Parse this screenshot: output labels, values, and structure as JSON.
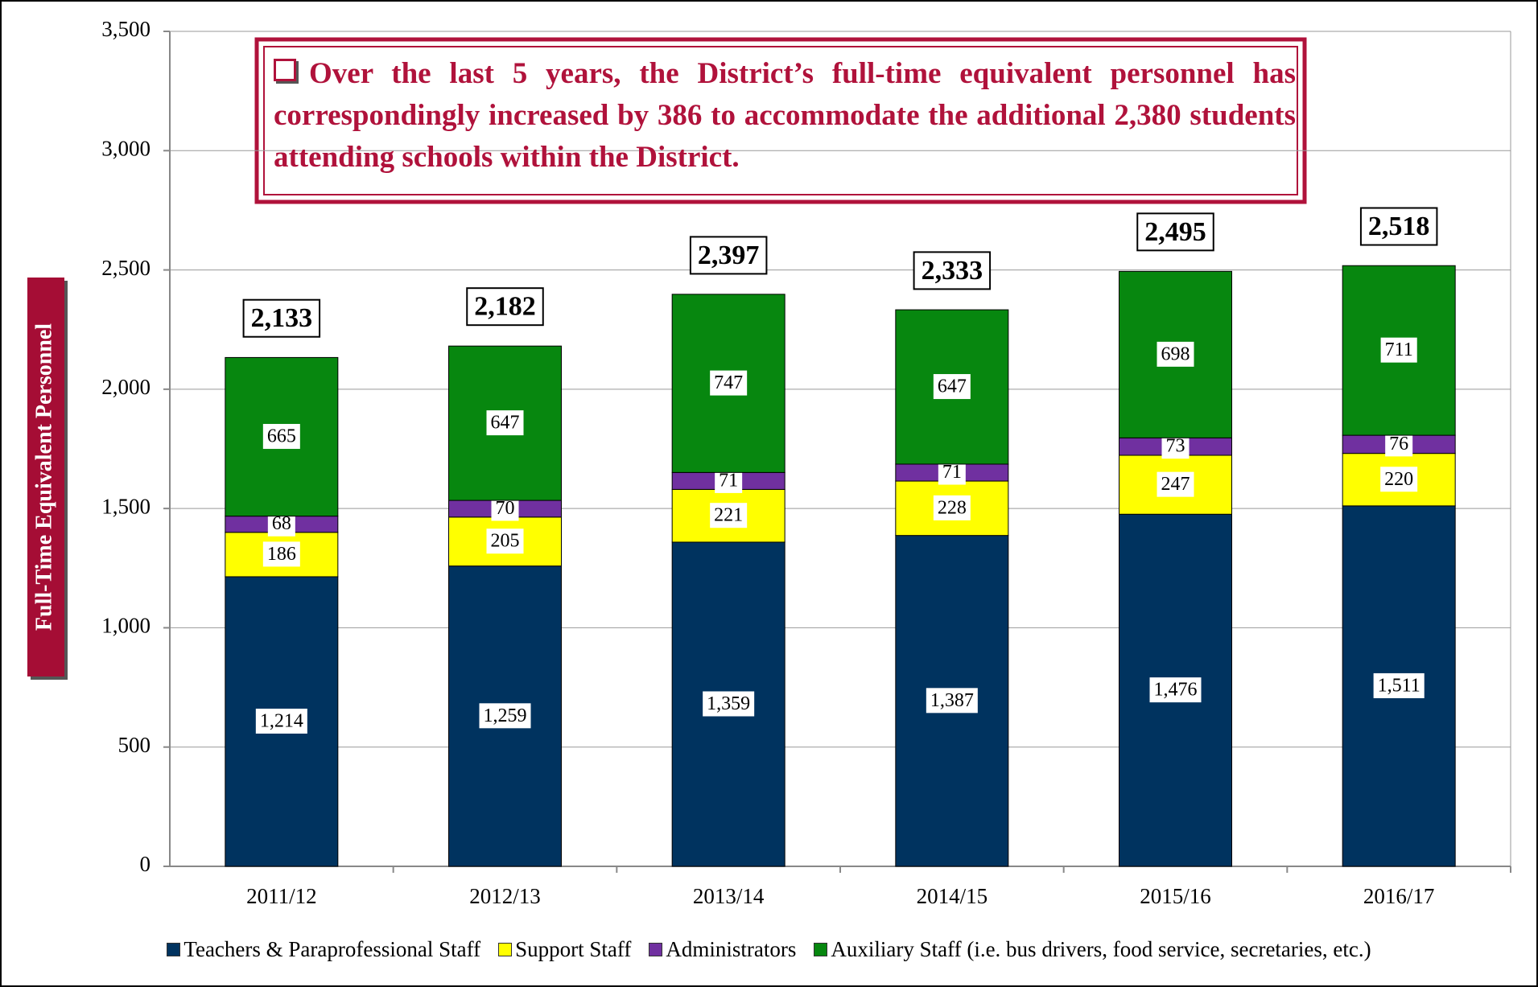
{
  "chart_data": {
    "type": "stacked_bar",
    "annotation": "Over the last 5 years, the District’s full-time equivalent personnel has correspondingly increased by 386 to accommodate the additional 2,380 students attending schools within the District.",
    "ylabel": "Full-Time Equivalent Personnel",
    "categories": [
      "2011/12",
      "2012/13",
      "2013/14",
      "2014/15",
      "2015/16",
      "2016/17"
    ],
    "series": [
      {
        "name": "Teachers & Paraprofessional Staff",
        "color": "#00335f",
        "values": [
          1214,
          1259,
          1359,
          1387,
          1476,
          1511
        ],
        "value_labels": [
          "1,214",
          "1,259",
          "1,359",
          "1,387",
          "1,476",
          "1,511"
        ]
      },
      {
        "name": "Support Staff",
        "color": "#ffff00",
        "values": [
          186,
          205,
          221,
          228,
          247,
          220
        ]
      },
      {
        "name": "Administrators",
        "color": "#7030a0",
        "values": [
          68,
          70,
          71,
          71,
          73,
          76
        ]
      },
      {
        "name": "Auxiliary Staff (i.e. bus drivers, food service, secretaries, etc.)",
        "color": "#07870f",
        "values": [
          665,
          647,
          747,
          647,
          698,
          711
        ]
      }
    ],
    "totals": [
      2133,
      2182,
      2397,
      2333,
      2495,
      2518
    ],
    "total_labels": [
      "2,133",
      "2,182",
      "2,397",
      "2,333",
      "2,495",
      "2,518"
    ],
    "ylim": [
      0,
      3500
    ],
    "yticks": [
      0,
      500,
      {
        "value": 1000,
        "label": "1,000"
      },
      {
        "value": 1500,
        "label": "1,500"
      },
      {
        "value": 2000,
        "label": "2,000"
      },
      {
        "value": 2500,
        "label": "2,500"
      },
      {
        "value": 3000,
        "label": "3,000"
      },
      {
        "value": 3500,
        "label": "3,500"
      }
    ],
    "grid": true,
    "legend": "bottom"
  }
}
